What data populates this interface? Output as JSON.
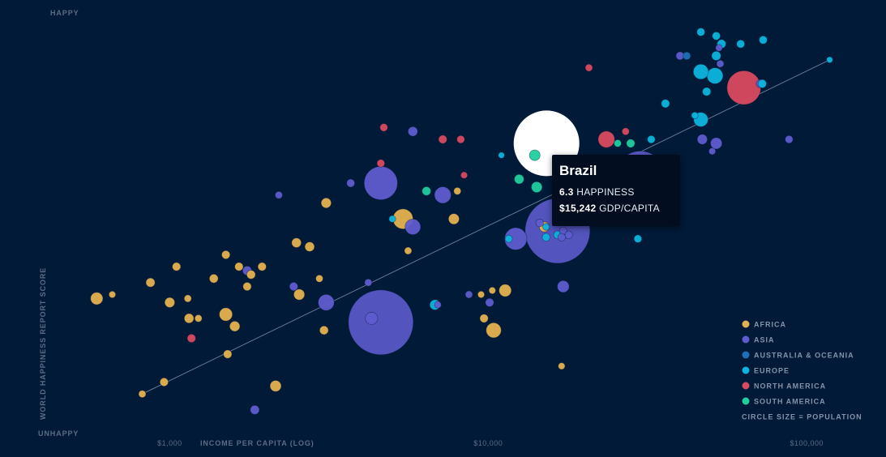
{
  "chart_data": {
    "type": "scatter",
    "y_top_label": "HAPPY",
    "y_bottom_label": "UNHAPPY",
    "ylabel": "WORLD HAPPINESS REPORT SCORE",
    "xlabel": "INCOME PER CAPITA (LOG)",
    "x_scale": "log",
    "x_ticks": [
      {
        "value": 1000,
        "label": "$1,000"
      },
      {
        "value": 10000,
        "label": "$10,000"
      },
      {
        "value": 100000,
        "label": "$100,000"
      }
    ],
    "xlim": [
      400,
      130000
    ],
    "ylim": [
      2.5,
      8.0
    ],
    "trendline": [
      [
        820,
        3.15
      ],
      [
        118000,
        7.35
      ]
    ],
    "regions": [
      {
        "key": "africa",
        "name": "AFRICA",
        "color": "#e5b14f"
      },
      {
        "key": "asia",
        "name": "ASIA",
        "color": "#5f5ccf"
      },
      {
        "key": "oceania",
        "name": "AUSTRALIA & OCEANIA",
        "color": "#1d6fb8"
      },
      {
        "key": "europe",
        "name": "EUROPE",
        "color": "#0cb4de"
      },
      {
        "key": "namerica",
        "name": "NORTH AMERICA",
        "color": "#d94a5f"
      },
      {
        "key": "samerica",
        "name": "SOUTH AMERICA",
        "color": "#1fcf9e"
      }
    ],
    "legend_note": "CIRCLE SIZE = POPULATION",
    "legend_position": "bottom-right",
    "points": [
      {
        "x": 46500,
        "y": 7.7,
        "pop": 0.5,
        "region": "europe"
      },
      {
        "x": 52000,
        "y": 7.65,
        "pop": 0.5,
        "region": "europe"
      },
      {
        "x": 62000,
        "y": 7.55,
        "pop": 0.5,
        "region": "europe"
      },
      {
        "x": 54000,
        "y": 7.55,
        "pop": 0.7,
        "region": "europe"
      },
      {
        "x": 53000,
        "y": 7.5,
        "pop": 0.2,
        "region": "asia"
      },
      {
        "x": 73000,
        "y": 7.6,
        "pop": 0.5,
        "region": "europe"
      },
      {
        "x": 40000,
        "y": 7.4,
        "pop": 0.5,
        "region": "asia"
      },
      {
        "x": 42000,
        "y": 7.4,
        "pop": 0.4,
        "region": "oceania"
      },
      {
        "x": 52000,
        "y": 7.4,
        "pop": 0.9,
        "region": "europe"
      },
      {
        "x": 53500,
        "y": 7.3,
        "pop": 0.3,
        "region": "asia"
      },
      {
        "x": 46500,
        "y": 7.2,
        "pop": 4.5,
        "region": "europe"
      },
      {
        "x": 51500,
        "y": 7.15,
        "pop": 5.5,
        "region": "europe"
      },
      {
        "x": 63500,
        "y": 7.0,
        "pop": 36,
        "region": "namerica"
      },
      {
        "x": 71500,
        "y": 7.05,
        "pop": 0.6,
        "region": "asia"
      },
      {
        "x": 72500,
        "y": 7.05,
        "pop": 0.6,
        "region": "europe"
      },
      {
        "x": 48500,
        "y": 6.95,
        "pop": 0.6,
        "region": "europe"
      },
      {
        "x": 36000,
        "y": 6.8,
        "pop": 0.6,
        "region": "europe"
      },
      {
        "x": 44500,
        "y": 6.65,
        "pop": 0.2,
        "region": "europe"
      },
      {
        "x": 46500,
        "y": 6.6,
        "pop": 4.0,
        "region": "europe"
      },
      {
        "x": 118000,
        "y": 7.35,
        "pop": 0.1,
        "region": "europe"
      },
      {
        "x": 20700,
        "y": 7.25,
        "pop": 0.3,
        "region": "namerica"
      },
      {
        "x": 27000,
        "y": 6.45,
        "pop": 0.3,
        "region": "namerica"
      },
      {
        "x": 23500,
        "y": 6.35,
        "pop": 6.0,
        "region": "namerica"
      },
      {
        "x": 25500,
        "y": 6.3,
        "pop": 0.3,
        "region": "samerica"
      },
      {
        "x": 28000,
        "y": 6.3,
        "pop": 0.6,
        "region": "samerica"
      },
      {
        "x": 32500,
        "y": 6.35,
        "pop": 0.4,
        "region": "europe"
      },
      {
        "x": 47000,
        "y": 6.35,
        "pop": 1.2,
        "region": "asia"
      },
      {
        "x": 52000,
        "y": 6.3,
        "pop": 2.0,
        "region": "asia"
      },
      {
        "x": 88000,
        "y": 6.35,
        "pop": 0.4,
        "region": "asia"
      },
      {
        "x": 50500,
        "y": 6.2,
        "pop": 0.2,
        "region": "asia"
      },
      {
        "x": 15242,
        "y": 6.3,
        "pop": 210,
        "region": "samerica",
        "highlight": true,
        "name": "Brazil"
      },
      {
        "x": 14000,
        "y": 6.15,
        "pop": 1.5,
        "region": "samerica"
      },
      {
        "x": 11000,
        "y": 6.15,
        "pop": 0.1,
        "region": "europe"
      },
      {
        "x": 7200,
        "y": 6.35,
        "pop": 0.6,
        "region": "namerica"
      },
      {
        "x": 8200,
        "y": 6.35,
        "pop": 0.4,
        "region": "namerica"
      },
      {
        "x": 4700,
        "y": 6.5,
        "pop": 0.4,
        "region": "namerica"
      },
      {
        "x": 5800,
        "y": 6.45,
        "pop": 1.0,
        "region": "asia"
      },
      {
        "x": 4600,
        "y": 6.05,
        "pop": 0.4,
        "region": "namerica"
      },
      {
        "x": 8400,
        "y": 5.9,
        "pop": 0.2,
        "region": "namerica"
      },
      {
        "x": 12500,
        "y": 5.85,
        "pop": 1.0,
        "region": "samerica"
      },
      {
        "x": 14200,
        "y": 5.75,
        "pop": 1.6,
        "region": "samerica"
      },
      {
        "x": 30000,
        "y": 5.9,
        "pop": 80,
        "region": "asia"
      },
      {
        "x": 3700,
        "y": 5.8,
        "pop": 0.5,
        "region": "asia"
      },
      {
        "x": 4600,
        "y": 5.8,
        "pop": 35,
        "region": "asia"
      },
      {
        "x": 2200,
        "y": 5.65,
        "pop": 0.3,
        "region": "asia"
      },
      {
        "x": 7200,
        "y": 5.65,
        "pop": 6.0,
        "region": "asia"
      },
      {
        "x": 6400,
        "y": 5.7,
        "pop": 0.7,
        "region": "samerica"
      },
      {
        "x": 8000,
        "y": 5.7,
        "pop": 0.3,
        "region": "africa"
      },
      {
        "x": 3100,
        "y": 5.55,
        "pop": 1.2,
        "region": "africa"
      },
      {
        "x": 5400,
        "y": 5.35,
        "pop": 10,
        "region": "africa"
      },
      {
        "x": 7800,
        "y": 5.35,
        "pop": 1.5,
        "region": "africa"
      },
      {
        "x": 5000,
        "y": 5.35,
        "pop": 0.2,
        "region": "europe"
      },
      {
        "x": 5800,
        "y": 5.25,
        "pop": 5.0,
        "region": "asia"
      },
      {
        "x": 14500,
        "y": 5.3,
        "pop": 0.4,
        "region": "asia"
      },
      {
        "x": 16500,
        "y": 5.2,
        "pop": 240,
        "region": "asia"
      },
      {
        "x": 12200,
        "y": 5.1,
        "pop": 13,
        "region": "asia"
      },
      {
        "x": 15000,
        "y": 5.25,
        "pop": 1.2,
        "region": "africa"
      },
      {
        "x": 15200,
        "y": 5.25,
        "pop": 0.2,
        "region": "europe"
      },
      {
        "x": 16500,
        "y": 5.15,
        "pop": 0.4,
        "region": "europe"
      },
      {
        "x": 17200,
        "y": 5.2,
        "pop": 0.4,
        "region": "asia"
      },
      {
        "x": 17900,
        "y": 5.15,
        "pop": 0.4,
        "region": "asia"
      },
      {
        "x": 17000,
        "y": 5.12,
        "pop": 0.4,
        "region": "asia"
      },
      {
        "x": 11600,
        "y": 5.1,
        "pop": 0.3,
        "region": "europe"
      },
      {
        "x": 15200,
        "y": 5.12,
        "pop": 0.4,
        "region": "europe"
      },
      {
        "x": 23000,
        "y": 5.35,
        "pop": 0.2,
        "region": "europe"
      },
      {
        "x": 29500,
        "y": 5.1,
        "pop": 0.4,
        "region": "europe"
      },
      {
        "x": 2500,
        "y": 5.05,
        "pop": 1.0,
        "region": "africa"
      },
      {
        "x": 2750,
        "y": 5.0,
        "pop": 1.0,
        "region": "africa"
      },
      {
        "x": 5600,
        "y": 4.95,
        "pop": 0.3,
        "region": "africa"
      },
      {
        "x": 1500,
        "y": 4.9,
        "pop": 0.6,
        "region": "africa"
      },
      {
        "x": 1650,
        "y": 4.75,
        "pop": 0.6,
        "region": "africa"
      },
      {
        "x": 1750,
        "y": 4.7,
        "pop": 0.8,
        "region": "asia"
      },
      {
        "x": 1800,
        "y": 4.65,
        "pop": 0.7,
        "region": "africa"
      },
      {
        "x": 1950,
        "y": 4.75,
        "pop": 0.6,
        "region": "africa"
      },
      {
        "x": 1050,
        "y": 4.75,
        "pop": 0.6,
        "region": "africa"
      },
      {
        "x": 1375,
        "y": 4.6,
        "pop": 0.7,
        "region": "africa"
      },
      {
        "x": 1750,
        "y": 4.5,
        "pop": 0.6,
        "region": "africa"
      },
      {
        "x": 870,
        "y": 4.55,
        "pop": 0.8,
        "region": "africa"
      },
      {
        "x": 2950,
        "y": 4.6,
        "pop": 0.3,
        "region": "africa"
      },
      {
        "x": 4200,
        "y": 4.55,
        "pop": 0.3,
        "region": "asia"
      },
      {
        "x": 2450,
        "y": 4.5,
        "pop": 0.6,
        "region": "asia"
      },
      {
        "x": 8700,
        "y": 4.4,
        "pop": 0.3,
        "region": "asia"
      },
      {
        "x": 9500,
        "y": 4.4,
        "pop": 0.2,
        "region": "africa"
      },
      {
        "x": 10300,
        "y": 4.45,
        "pop": 0.2,
        "region": "africa"
      },
      {
        "x": 11300,
        "y": 4.45,
        "pop": 2.5,
        "region": "africa"
      },
      {
        "x": 17200,
        "y": 4.5,
        "pop": 2.2,
        "region": "asia"
      },
      {
        "x": 2550,
        "y": 4.4,
        "pop": 1.6,
        "region": "africa"
      },
      {
        "x": 3100,
        "y": 4.3,
        "pop": 5.5,
        "region": "asia"
      },
      {
        "x": 10100,
        "y": 4.3,
        "pop": 0.6,
        "region": "asia"
      },
      {
        "x": 590,
        "y": 4.35,
        "pop": 2.5,
        "region": "africa"
      },
      {
        "x": 660,
        "y": 4.4,
        "pop": 0.2,
        "region": "africa"
      },
      {
        "x": 1000,
        "y": 4.3,
        "pop": 1.2,
        "region": "africa"
      },
      {
        "x": 1140,
        "y": 4.35,
        "pop": 0.3,
        "region": "africa"
      },
      {
        "x": 1500,
        "y": 4.15,
        "pop": 3.0,
        "region": "africa"
      },
      {
        "x": 1150,
        "y": 4.1,
        "pop": 1.0,
        "region": "africa"
      },
      {
        "x": 1230,
        "y": 4.1,
        "pop": 0.3,
        "region": "africa"
      },
      {
        "x": 1600,
        "y": 4.0,
        "pop": 1.3,
        "region": "africa"
      },
      {
        "x": 6800,
        "y": 4.27,
        "pop": 1.3,
        "region": "europe"
      },
      {
        "x": 6950,
        "y": 4.27,
        "pop": 0.2,
        "region": "asia"
      },
      {
        "x": 4600,
        "y": 4.05,
        "pop": 1350,
        "region": "asia"
      },
      {
        "x": 4300,
        "y": 4.1,
        "pop": 2.5,
        "region": "asia"
      },
      {
        "x": 9700,
        "y": 4.1,
        "pop": 0.6,
        "region": "africa"
      },
      {
        "x": 10400,
        "y": 3.95,
        "pop": 4.5,
        "region": "africa"
      },
      {
        "x": 3050,
        "y": 3.95,
        "pop": 0.7,
        "region": "africa"
      },
      {
        "x": 1170,
        "y": 3.85,
        "pop": 0.6,
        "region": "namerica"
      },
      {
        "x": 1520,
        "y": 3.65,
        "pop": 0.6,
        "region": "africa"
      },
      {
        "x": 17000,
        "y": 3.5,
        "pop": 0.2,
        "region": "africa"
      },
      {
        "x": 820,
        "y": 3.15,
        "pop": 0.3,
        "region": "africa"
      },
      {
        "x": 960,
        "y": 3.3,
        "pop": 0.6,
        "region": "africa"
      },
      {
        "x": 2150,
        "y": 3.25,
        "pop": 1.8,
        "region": "africa"
      },
      {
        "x": 1850,
        "y": 2.95,
        "pop": 0.8,
        "region": "asia"
      }
    ]
  },
  "tooltip": {
    "name": "Brazil",
    "happiness_value": "6.3",
    "happiness_label": "HAPPINESS",
    "gdp_value": "$15,242",
    "gdp_label": "GDP/CAPITA"
  }
}
